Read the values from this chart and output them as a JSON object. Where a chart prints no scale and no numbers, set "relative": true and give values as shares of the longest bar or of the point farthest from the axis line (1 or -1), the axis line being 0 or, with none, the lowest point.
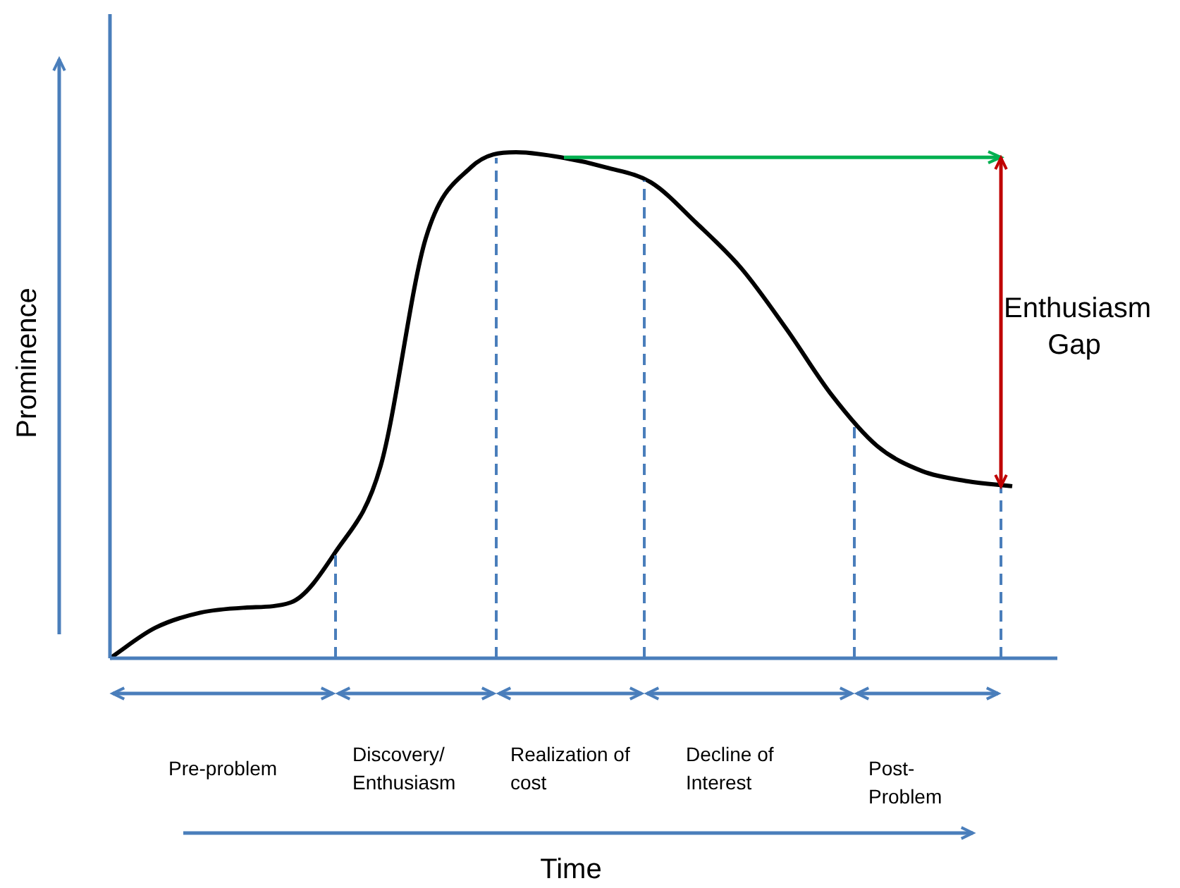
{
  "chart_data": {
    "type": "line",
    "ylabel": "Prominence",
    "relative": true,
    "categories": [
      null,
      null,
      null,
      null,
      null,
      null,
      null,
      null,
      null,
      null,
      null,
      null,
      null,
      null,
      null,
      null,
      null,
      null,
      null,
      null,
      null,
      null
    ],
    "series": [
      {
        "color": "#000000",
        "values": [
          0,
          0.06,
          0.09,
          0.1,
          0.11,
          0.21,
          0.38,
          0.83,
          0.97,
          1.0,
          0.99,
          0.97,
          0.94,
          0.86,
          0.77,
          0.65,
          0.52,
          0.42,
          0.37,
          0.35,
          0.34,
          null
        ]
      }
    ],
    "ref_lines": [
      {
        "axis": "y",
        "value": 0.99,
        "color": "#00b050"
      }
    ],
    "marker": "none",
    "legend": false,
    "annotations": [
      "Enthusiasm Gap",
      "Pre-problem",
      "Discovery/ Enthusiasm",
      "Realization of cost",
      "Decline of Interest",
      "Post-Problem",
      "Time"
    ]
  }
}
